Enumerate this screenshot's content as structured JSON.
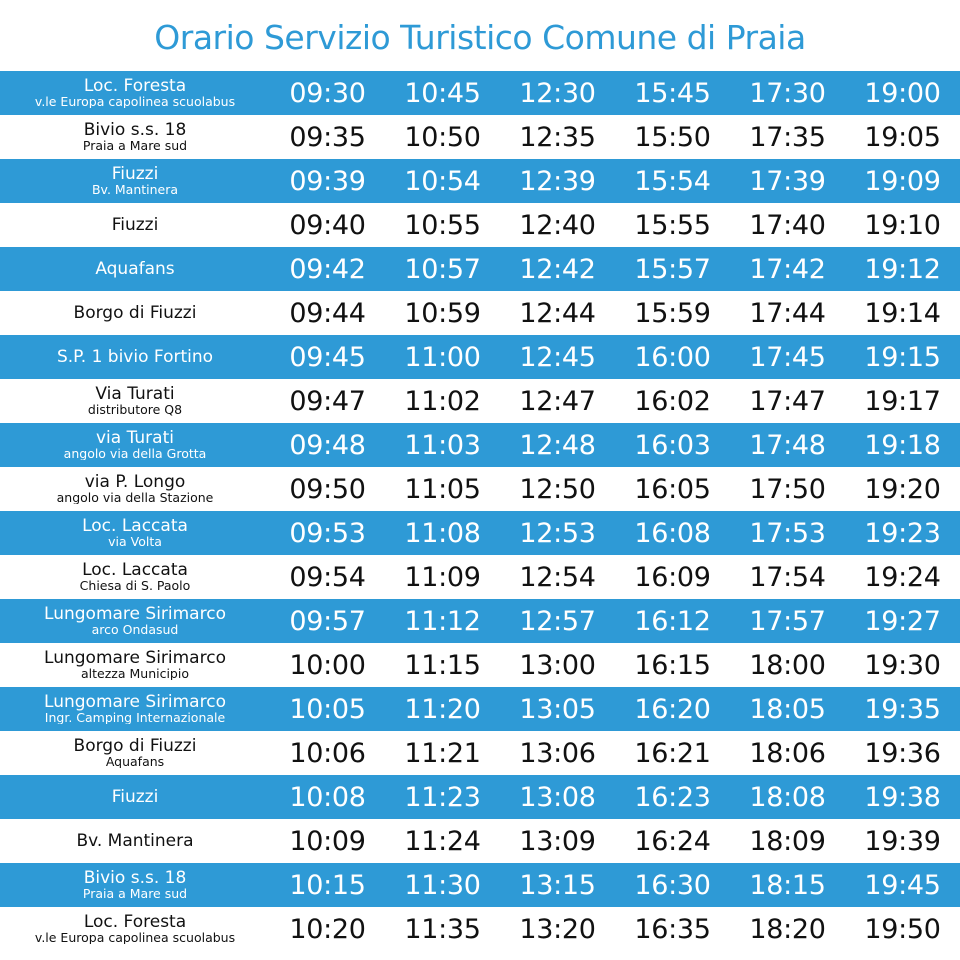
{
  "title": "Orario Servizio Turistico Comune di Praia",
  "rows": [
    {
      "name": "Loc. Foresta",
      "sub": "v.le Europa capolinea scuolabus",
      "times": [
        "09:30",
        "10:45",
        "12:30",
        "15:45",
        "17:30",
        "19:00"
      ]
    },
    {
      "name": "Bivio s.s. 18",
      "sub": "Praia a Mare sud",
      "times": [
        "09:35",
        "10:50",
        "12:35",
        "15:50",
        "17:35",
        "19:05"
      ]
    },
    {
      "name": "Fiuzzi",
      "sub": "Bv. Mantinera",
      "times": [
        "09:39",
        "10:54",
        "12:39",
        "15:54",
        "17:39",
        "19:09"
      ]
    },
    {
      "name": "Fiuzzi",
      "sub": "",
      "times": [
        "09:40",
        "10:55",
        "12:40",
        "15:55",
        "17:40",
        "19:10"
      ]
    },
    {
      "name": "Aquafans",
      "sub": "",
      "times": [
        "09:42",
        "10:57",
        "12:42",
        "15:57",
        "17:42",
        "19:12"
      ]
    },
    {
      "name": "Borgo di Fiuzzi",
      "sub": "",
      "times": [
        "09:44",
        "10:59",
        "12:44",
        "15:59",
        "17:44",
        "19:14"
      ]
    },
    {
      "name": "S.P. 1 bivio Fortino",
      "sub": "",
      "times": [
        "09:45",
        "11:00",
        "12:45",
        "16:00",
        "17:45",
        "19:15"
      ]
    },
    {
      "name": "Via Turati",
      "sub": "distributore Q8",
      "times": [
        "09:47",
        "11:02",
        "12:47",
        "16:02",
        "17:47",
        "19:17"
      ]
    },
    {
      "name": "via Turati",
      "sub": "angolo via della Grotta",
      "times": [
        "09:48",
        "11:03",
        "12:48",
        "16:03",
        "17:48",
        "19:18"
      ]
    },
    {
      "name": "via P. Longo",
      "sub": "angolo via della Stazione",
      "times": [
        "09:50",
        "11:05",
        "12:50",
        "16:05",
        "17:50",
        "19:20"
      ]
    },
    {
      "name": "Loc. Laccata",
      "sub": "via Volta",
      "times": [
        "09:53",
        "11:08",
        "12:53",
        "16:08",
        "17:53",
        "19:23"
      ]
    },
    {
      "name": "Loc. Laccata",
      "sub": "Chiesa di S. Paolo",
      "times": [
        "09:54",
        "11:09",
        "12:54",
        "16:09",
        "17:54",
        "19:24"
      ]
    },
    {
      "name": "Lungomare Sirimarco",
      "sub": "arco Ondasud",
      "times": [
        "09:57",
        "11:12",
        "12:57",
        "16:12",
        "17:57",
        "19:27"
      ]
    },
    {
      "name": "Lungomare Sirimarco",
      "sub": "altezza Municipio",
      "times": [
        "10:00",
        "11:15",
        "13:00",
        "16:15",
        "18:00",
        "19:30"
      ]
    },
    {
      "name": "Lungomare Sirimarco",
      "sub": "Ingr. Camping Internazionale",
      "times": [
        "10:05",
        "11:20",
        "13:05",
        "16:20",
        "18:05",
        "19:35"
      ]
    },
    {
      "name": "Borgo di Fiuzzi",
      "sub": "Aquafans",
      "times": [
        "10:06",
        "11:21",
        "13:06",
        "16:21",
        "18:06",
        "19:36"
      ]
    },
    {
      "name": "Fiuzzi",
      "sub": "",
      "times": [
        "10:08",
        "11:23",
        "13:08",
        "16:23",
        "18:08",
        "19:38"
      ]
    },
    {
      "name": "Bv. Mantinera",
      "sub": "",
      "times": [
        "10:09",
        "11:24",
        "13:09",
        "16:24",
        "18:09",
        "19:39"
      ]
    },
    {
      "name": "Bivio s.s. 18",
      "sub": "Praia a Mare sud",
      "times": [
        "10:15",
        "11:30",
        "13:15",
        "16:30",
        "18:15",
        "19:45"
      ]
    },
    {
      "name": "Loc. Foresta",
      "sub": "v.le Europa capolinea scuolabus",
      "times": [
        "10:20",
        "11:35",
        "13:20",
        "16:35",
        "18:20",
        "19:50"
      ]
    }
  ],
  "colors": {
    "accent": "#2e9ad6",
    "text_on_white": "#111111",
    "text_on_blue": "#ffffff"
  }
}
